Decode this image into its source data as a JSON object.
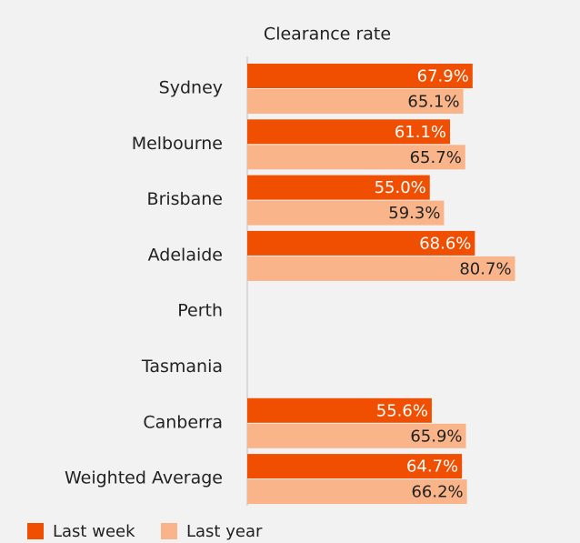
{
  "chart_data": {
    "type": "hbar",
    "title": "Clearance rate",
    "categories": [
      "Sydney",
      "Melbourne",
      "Brisbane",
      "Adelaide",
      "Perth",
      "Tasmania",
      "Canberra",
      "Weighted Average"
    ],
    "series": [
      {
        "name": "Last week",
        "color": "#f04e00",
        "values": [
          67.9,
          61.1,
          55.0,
          68.6,
          null,
          null,
          55.6,
          64.7
        ],
        "value_labels": [
          "67.9%",
          "61.1%",
          "55.0%",
          "68.6%",
          null,
          null,
          "55.6%",
          "64.7%"
        ]
      },
      {
        "name": "Last year",
        "color": "#f9b48a",
        "values": [
          65.1,
          65.7,
          59.3,
          80.7,
          null,
          null,
          65.9,
          66.2
        ],
        "value_labels": [
          "65.1%",
          "65.7%",
          "59.3%",
          "80.7%",
          null,
          null,
          "65.9%",
          "66.2%"
        ]
      }
    ],
    "xlim": [
      0,
      100
    ],
    "legend": "bottom-left"
  }
}
